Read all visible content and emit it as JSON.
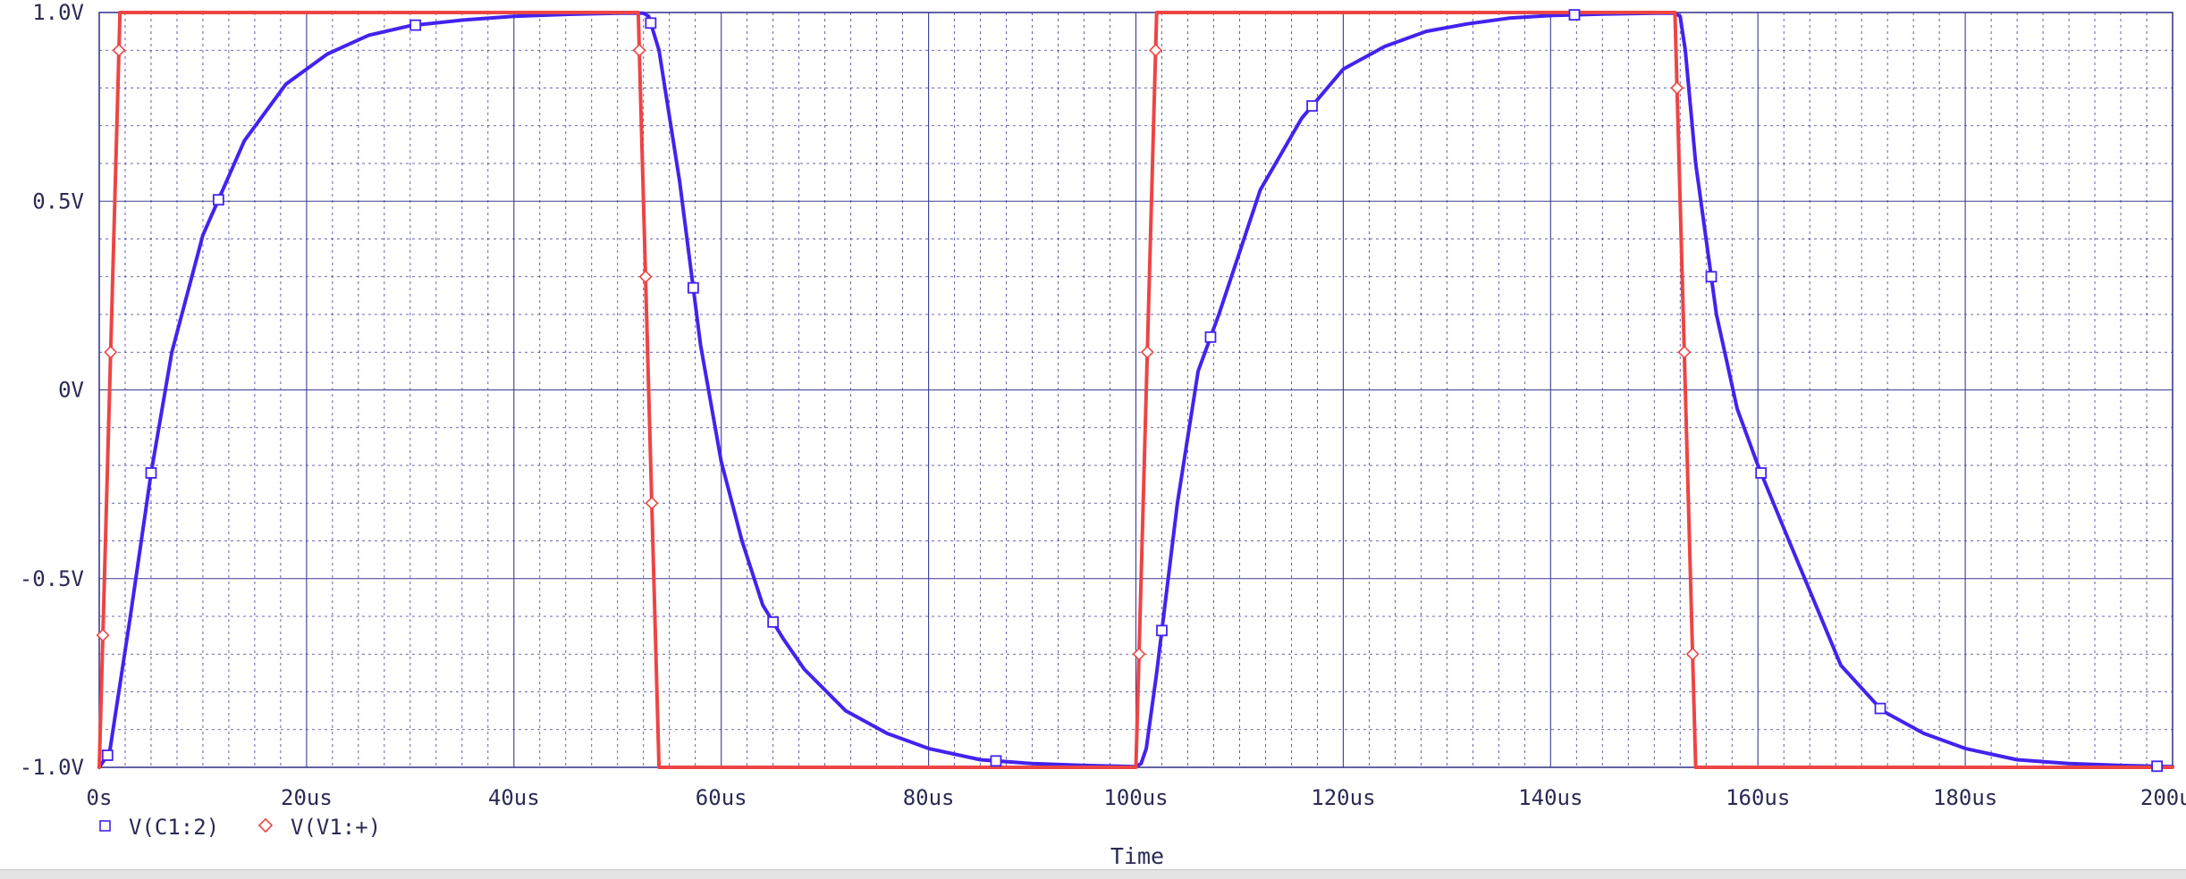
{
  "chart_data": {
    "type": "line",
    "xlabel": "Time",
    "ylabel": "",
    "xlim": [
      0,
      200
    ],
    "ylim": [
      -1.0,
      1.0
    ],
    "x_unit": "us",
    "x_ticks": [
      0,
      20,
      40,
      60,
      80,
      100,
      120,
      140,
      160,
      180,
      200
    ],
    "x_tick_labels": [
      "0s",
      "20us",
      "40us",
      "60us",
      "80us",
      "100us",
      "120us",
      "140us",
      "160us",
      "180us",
      "200us"
    ],
    "y_ticks": [
      -1.0,
      -0.5,
      0,
      0.5,
      1.0
    ],
    "y_tick_labels": [
      "-1.0V",
      "-0.5V",
      "0V",
      "0.5V",
      "1.0V"
    ],
    "grid": true,
    "legend_position": "bottom-left",
    "series": [
      {
        "name": "V(C1:2)",
        "color": "#4422ee",
        "marker": "square",
        "x": [
          0,
          1,
          3,
          5,
          7,
          10,
          14,
          18,
          22,
          26,
          30,
          35,
          40,
          45,
          50,
          52.5,
          53,
          54,
          56,
          58,
          60,
          62,
          64,
          66,
          68,
          72,
          76,
          80,
          85,
          90,
          95,
          100,
          100.5,
          101,
          102,
          104,
          106,
          108,
          112,
          116,
          120,
          124,
          128,
          132,
          136,
          140,
          145,
          150,
          152,
          152.5,
          153,
          154,
          156,
          158,
          160,
          163,
          168,
          172,
          176,
          180,
          185,
          190,
          195,
          200
        ],
        "values": [
          -1.0,
          -0.96,
          -0.6,
          -0.22,
          0.1,
          0.41,
          0.66,
          0.81,
          0.89,
          0.94,
          0.965,
          0.98,
          0.99,
          0.995,
          0.998,
          0.998,
          0.99,
          0.9,
          0.55,
          0.12,
          -0.19,
          -0.4,
          -0.57,
          -0.66,
          -0.74,
          -0.85,
          -0.91,
          -0.95,
          -0.98,
          -0.99,
          -0.995,
          -0.998,
          -0.99,
          -0.95,
          -0.75,
          -0.3,
          0.05,
          0.2,
          0.53,
          0.72,
          0.85,
          0.91,
          0.95,
          0.97,
          0.985,
          0.992,
          0.996,
          0.998,
          0.998,
          0.99,
          0.9,
          0.6,
          0.2,
          -0.05,
          -0.2,
          -0.4,
          -0.73,
          -0.85,
          -0.91,
          -0.95,
          -0.98,
          -0.99,
          -0.995,
          -0.998
        ],
        "marker_x": [
          0.8,
          5,
          11.5,
          30.5,
          53.2,
          57.3,
          65,
          86.5,
          102.5,
          107.2,
          117,
          142.3,
          155.5,
          160.3,
          171.8,
          198.5
        ]
      },
      {
        "name": "V(V1:+)",
        "color": "#ee4444",
        "marker": "diamond",
        "x": [
          0,
          2,
          52,
          54,
          100,
          102,
          152,
          154,
          200
        ],
        "values": [
          -1.0,
          1.0,
          1.0,
          -1.0,
          -1.0,
          1.0,
          1.0,
          -1.0,
          -1.0
        ],
        "marker_x": [
          0.35,
          1.1,
          1.9,
          52.1,
          52.7,
          53.3,
          100.3,
          101.1,
          101.9,
          152.2,
          152.9,
          153.7
        ]
      }
    ]
  }
}
